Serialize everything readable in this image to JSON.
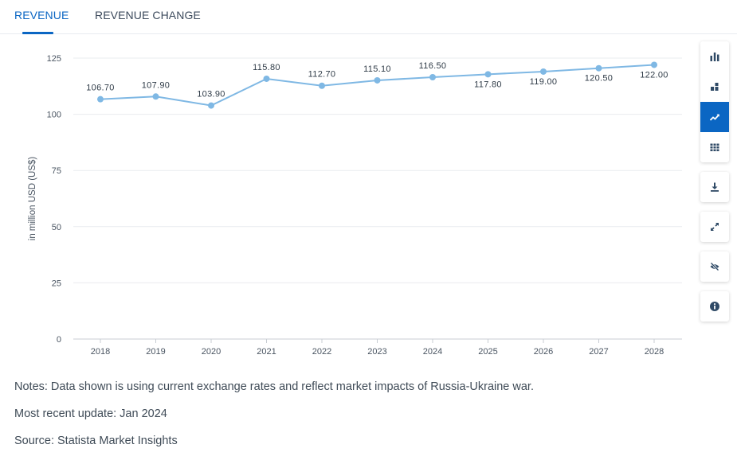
{
  "tabs": [
    {
      "label": "REVENUE",
      "active": true
    },
    {
      "label": "REVENUE CHANGE",
      "active": false
    }
  ],
  "toolbar": [
    {
      "icon": "bar-chart-icon"
    },
    {
      "icon": "stacked-bar-icon"
    },
    {
      "icon": "line-chart-icon",
      "active": true
    },
    {
      "icon": "table-icon"
    },
    {
      "icon": "download-icon"
    },
    {
      "icon": "fullscreen-icon"
    },
    {
      "icon": "hide-icon"
    },
    {
      "icon": "info-icon"
    }
  ],
  "chart_data": {
    "type": "line",
    "x": [
      "2018",
      "2019",
      "2020",
      "2021",
      "2022",
      "2023",
      "2024",
      "2025",
      "2026",
      "2027",
      "2028"
    ],
    "series": [
      {
        "values": [
          106.7,
          107.9,
          103.9,
          115.8,
          112.7,
          115.1,
          116.5,
          117.8,
          119.0,
          120.5,
          122.0
        ]
      }
    ],
    "data_labels": [
      "106.70",
      "107.90",
      "103.90",
      "115.80",
      "112.70",
      "115.10",
      "116.50",
      "117.80",
      "119.00",
      "120.50",
      "122.00"
    ],
    "ylabel": "in million USD (US$)",
    "ylim": [
      0,
      125
    ],
    "yticks": [
      0,
      25,
      50,
      75,
      100,
      125
    ],
    "grid": true,
    "color": "#7fb8e4"
  },
  "notes": {
    "note": "Notes: Data shown is using current exchange rates and reflect market impacts of Russia-Ukraine war.",
    "update": "Most recent update: Jan 2024",
    "source": "Source: Statista Market Insights"
  }
}
